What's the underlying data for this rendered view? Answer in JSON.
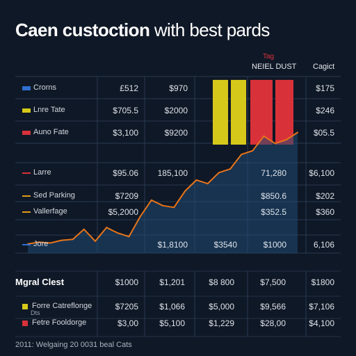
{
  "title_bold": "Caen custoction",
  "title_rest": " with best pards",
  "header": {
    "tag": "Tag",
    "col_a": "NEIEL DUST",
    "col_b": "Cagict"
  },
  "top_rows": [
    {
      "label": "Crorns",
      "color": "#2f6fd1",
      "c1": "£512",
      "c2": "$970",
      "c3": "$175"
    },
    {
      "label": "Lnre Tate",
      "color": "#d6c81a",
      "c1": "$705.5",
      "c2": "$2000",
      "c3": "$246"
    },
    {
      "label": "Auno Fate",
      "color": "#d8313a",
      "c1": "$3,100",
      "c2": "$9200",
      "c3": "$05.5"
    }
  ],
  "mid_rows": [
    {
      "label": "Larre",
      "color": "#d8313a",
      "c1": "$95.06",
      "c2": "185,100",
      "c4": "71,280",
      "c5": "$6,100"
    },
    {
      "label": "Sed Parking",
      "color": "#e09a1a",
      "c1": "$7209",
      "c4": "$850.6",
      "c5": "$202"
    },
    {
      "label": "Vallerfage",
      "color": "#e09a1a",
      "c1": "$5,2000",
      "c4": "$352.5",
      "c5": "$360"
    },
    {
      "label": "Jore",
      "color": "#2f6fd1",
      "c2": "$1,8100",
      "c3": "$3540",
      "c4": "$1000",
      "c5": "6,106"
    }
  ],
  "section": {
    "title": "Mgral Clest",
    "header_values": [
      "$1000",
      "$1,201",
      "$8 800",
      "$7,500",
      "$1800"
    ]
  },
  "bottom_rows": [
    {
      "label": "Forre Catreflonge",
      "sub": "Dts",
      "color": "#d6c81a",
      "values": [
        "$7205",
        "$1,066",
        "$5,000",
        "$9,566",
        "$7,106"
      ]
    },
    {
      "label": "Fetre Fooldorge",
      "sub": "",
      "color": "#d8313a",
      "values": [
        "$3,00",
        "$5,100",
        "$1,229",
        "$28,00",
        "$4,100"
      ]
    }
  ],
  "footer": "2011: Welgaing 20 0031 beal Cats",
  "chart_data": {
    "type": "line",
    "title": "Caen custoction with best pards",
    "xlabel": "",
    "ylabel": "",
    "line_series": {
      "color": "#e8741a",
      "values": [
        10,
        12,
        11,
        14,
        15,
        26,
        13,
        28,
        22,
        18,
        40,
        58,
        52,
        50,
        68,
        80,
        76,
        88,
        92,
        108,
        112,
        128,
        120,
        124,
        132
      ]
    },
    "bar_series": [
      {
        "color": "#d6c81a",
        "value": 95
      },
      {
        "color": "#d6c81a",
        "value": 95
      },
      {
        "color": "#d8313a",
        "value": 95
      },
      {
        "color": "#d8313a",
        "value": 95
      }
    ],
    "ylim": [
      0,
      140
    ]
  }
}
